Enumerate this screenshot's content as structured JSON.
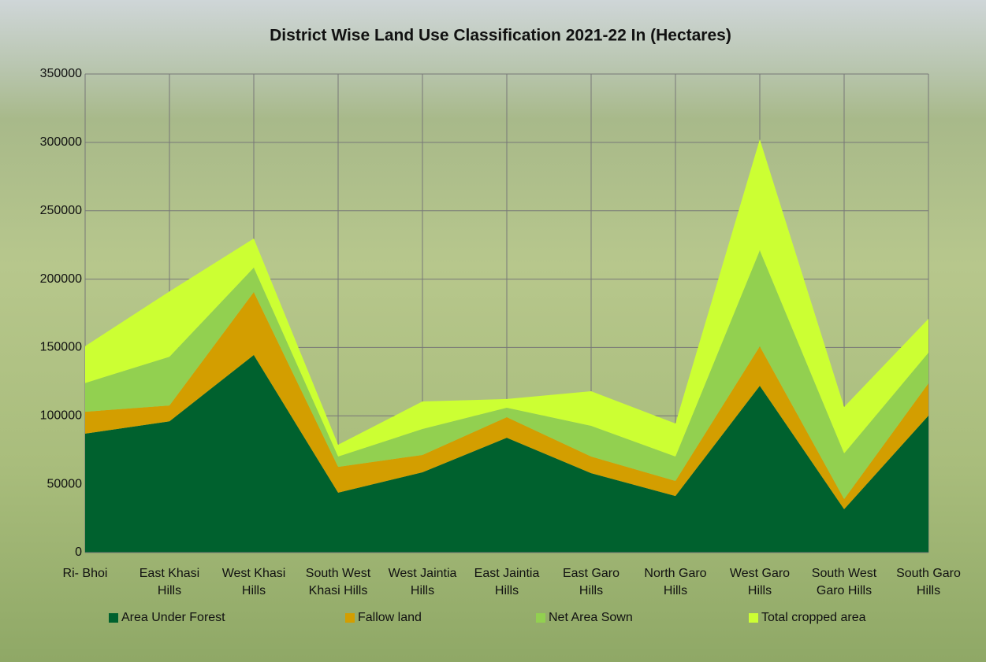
{
  "chart_data": {
    "type": "stacked-area",
    "title": "District Wise Land Use Classification  2021-22  In (Hectares)",
    "categories": [
      "Ri- Bhoi",
      "East Khasi Hills",
      "West Khasi Hills",
      "South West Khasi Hills",
      "West Jaintia Hills",
      "East Jaintia Hills",
      "East Garo Hills",
      "North Garo Hills",
      "West Garo Hills",
      "South West Garo Hills",
      "South Garo Hills"
    ],
    "series": [
      {
        "name": "Area Under Forest",
        "color": "#00612e",
        "values": [
          87000,
          96000,
          144500,
          43800,
          58700,
          84000,
          58100,
          41400,
          122000,
          31700,
          100200
        ]
      },
      {
        "name": "Fallow land",
        "color": "#d39e00",
        "values": [
          16000,
          11600,
          46000,
          18900,
          12700,
          15000,
          12100,
          11000,
          28800,
          7400,
          23600
        ]
      },
      {
        "name": "Net Area Sown",
        "color": "#92d050",
        "values": [
          21000,
          35600,
          17900,
          7500,
          19000,
          6900,
          22500,
          17800,
          70200,
          33400,
          22400
        ]
      },
      {
        "name": "Total cropped area",
        "color": "#ccff33",
        "values": [
          27000,
          47800,
          21300,
          8700,
          20100,
          6400,
          25300,
          24200,
          81200,
          34000,
          24800
        ]
      }
    ],
    "ylim": [
      0,
      350000
    ],
    "yticks": [
      0,
      50000,
      100000,
      150000,
      200000,
      250000,
      300000,
      350000
    ],
    "grid": true,
    "legend": "bottom"
  }
}
